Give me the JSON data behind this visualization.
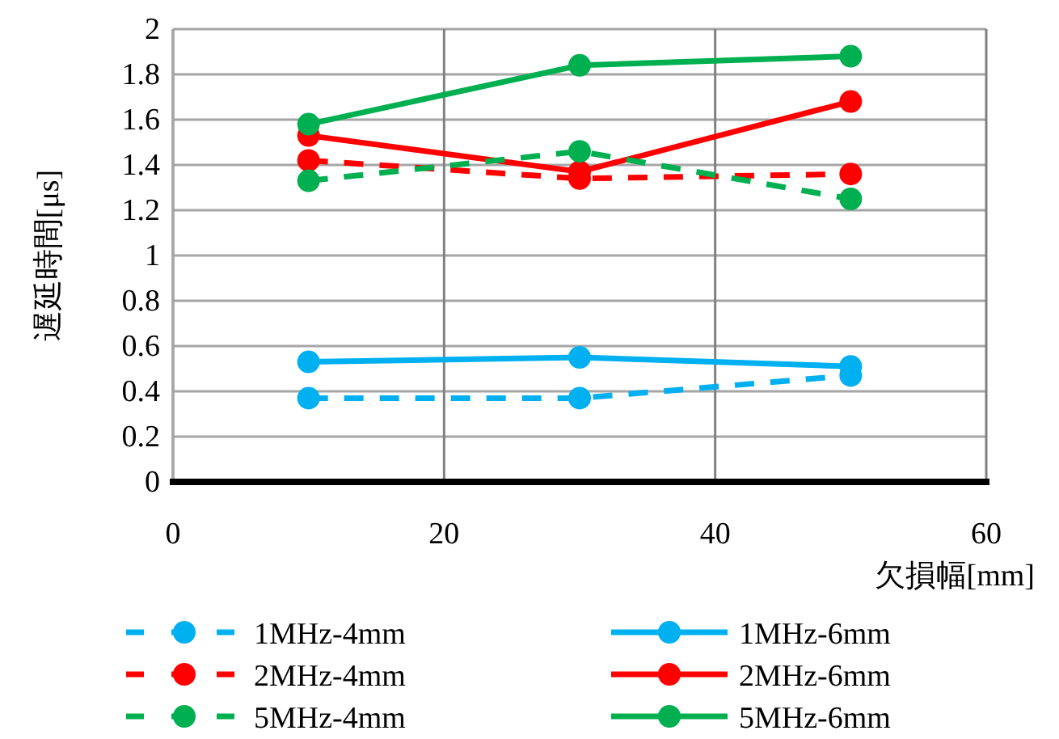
{
  "chart_data": {
    "type": "line",
    "xlabel": "欠損幅[mm]",
    "ylabel": "遅延時間[μs]",
    "x": [
      10,
      30,
      50
    ],
    "xlim": [
      0,
      60
    ],
    "xticks": [
      0,
      20,
      40,
      60
    ],
    "ylim": [
      0,
      2
    ],
    "yticks": [
      0,
      0.2,
      0.4,
      0.6,
      0.8,
      1,
      1.2,
      1.4,
      1.6,
      1.8,
      2
    ],
    "grid": true,
    "legend": "bottom",
    "marker": "circle",
    "series": [
      {
        "name": "1MHz-4mm",
        "color": "#00b0f0",
        "line_style": "dashed",
        "values": [
          0.37,
          0.37,
          0.47
        ]
      },
      {
        "name": "1MHz-6mm",
        "color": "#00b0f0",
        "line_style": "solid",
        "values": [
          0.53,
          0.55,
          0.51
        ]
      },
      {
        "name": "2MHz-4mm",
        "color": "#ff0000",
        "line_style": "dashed",
        "values": [
          1.42,
          1.34,
          1.36
        ]
      },
      {
        "name": "2MHz-6mm",
        "color": "#ff0000",
        "line_style": "solid",
        "values": [
          1.53,
          1.37,
          1.68
        ]
      },
      {
        "name": "5MHz-4mm",
        "color": "#00b050",
        "line_style": "dashed",
        "values": [
          1.33,
          1.46,
          1.25
        ]
      },
      {
        "name": "5MHz-6mm",
        "color": "#00b050",
        "line_style": "solid",
        "values": [
          1.58,
          1.84,
          1.88
        ]
      }
    ]
  }
}
